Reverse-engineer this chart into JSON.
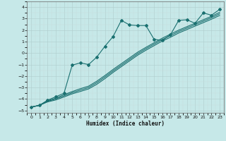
{
  "xlabel": "Humidex (Indice chaleur)",
  "bg_color": "#c6e8e8",
  "grid_major_color": "#b8d4d4",
  "grid_minor_color": "#d8e8e8",
  "line_color": "#1a7070",
  "xlim": [
    -0.5,
    23.5
  ],
  "ylim": [
    -5.2,
    4.5
  ],
  "xticks": [
    0,
    1,
    2,
    3,
    4,
    5,
    6,
    7,
    8,
    9,
    10,
    11,
    12,
    13,
    14,
    15,
    16,
    17,
    18,
    19,
    20,
    21,
    22,
    23
  ],
  "yticks": [
    -5,
    -4,
    -3,
    -2,
    -1,
    0,
    1,
    2,
    3,
    4
  ],
  "line1_x": [
    0,
    1,
    2,
    3,
    4,
    5,
    6,
    7,
    8,
    9,
    10,
    11,
    12,
    13,
    14,
    15,
    16,
    17,
    18,
    19,
    20,
    21,
    22,
    23
  ],
  "line1_y": [
    -4.7,
    -4.55,
    -4.1,
    -3.8,
    -3.5,
    -1.05,
    -0.85,
    -1.0,
    -0.35,
    0.6,
    1.45,
    2.85,
    2.45,
    2.4,
    2.4,
    1.2,
    1.1,
    1.6,
    2.85,
    2.9,
    2.6,
    3.5,
    3.3,
    3.8
  ],
  "line2_x": [
    0,
    1,
    2,
    3,
    4,
    5,
    6,
    7,
    8,
    9,
    10,
    11,
    12,
    13,
    14,
    15,
    16,
    17,
    18,
    19,
    20,
    21,
    22,
    23
  ],
  "line2_y": [
    -4.7,
    -4.55,
    -4.15,
    -3.92,
    -3.62,
    -3.35,
    -3.1,
    -2.88,
    -2.45,
    -1.95,
    -1.42,
    -0.92,
    -0.42,
    0.08,
    0.5,
    0.9,
    1.3,
    1.65,
    2.0,
    2.3,
    2.6,
    2.9,
    3.2,
    3.55
  ],
  "line3_x": [
    0,
    1,
    2,
    3,
    4,
    5,
    6,
    7,
    8,
    9,
    10,
    11,
    12,
    13,
    14,
    15,
    16,
    17,
    18,
    19,
    20,
    21,
    22,
    23
  ],
  "line3_y": [
    -4.7,
    -4.55,
    -4.2,
    -4.0,
    -3.72,
    -3.45,
    -3.22,
    -3.0,
    -2.58,
    -2.08,
    -1.55,
    -1.05,
    -0.55,
    -0.05,
    0.38,
    0.78,
    1.18,
    1.52,
    1.88,
    2.18,
    2.48,
    2.78,
    3.08,
    3.42
  ],
  "line4_x": [
    0,
    1,
    2,
    3,
    4,
    5,
    6,
    7,
    8,
    9,
    10,
    11,
    12,
    13,
    14,
    15,
    16,
    17,
    18,
    19,
    20,
    21,
    22,
    23
  ],
  "line4_y": [
    -4.7,
    -4.55,
    -4.25,
    -4.08,
    -3.82,
    -3.55,
    -3.34,
    -3.12,
    -2.72,
    -2.22,
    -1.68,
    -1.18,
    -0.68,
    -0.18,
    0.25,
    0.65,
    1.05,
    1.38,
    1.75,
    2.05,
    2.35,
    2.65,
    2.95,
    3.28
  ]
}
